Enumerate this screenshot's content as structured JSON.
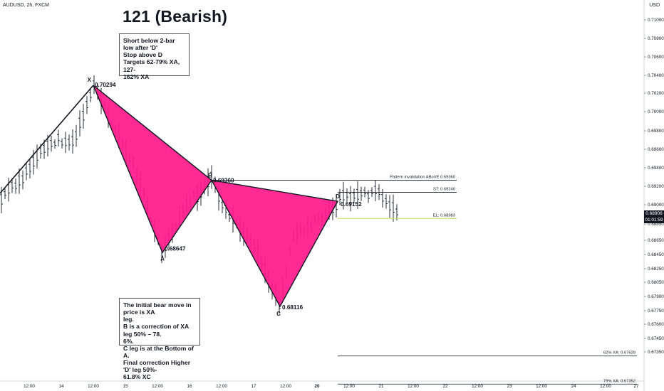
{
  "header": {
    "symbol": "AUDUSD, 2h, FXCM",
    "currency": "USD"
  },
  "title": "121 (Bearish)",
  "notes": {
    "top": [
      "Short below 2-bar low after 'D'",
      "Stop above D",
      "Targets 62-79% XA, 127-",
      "162%  XA"
    ],
    "bottom": [
      "The initial bear move in price is XA",
      "leg.",
      "B is a correction of XA leg 50% – 78.",
      "6%.",
      "C leg is at the Bottom of A.",
      "Final correction Higher 'D' leg 50%-",
      "61.8% XC"
    ]
  },
  "price_badge": {
    "price": "0.68906",
    "countdown": "01:01:59"
  },
  "colors": {
    "pattern_fill": "#ff1a8c",
    "pattern_stroke": "#131722",
    "entry_line": "#c6e36b",
    "level_line": "#131722",
    "candle": "#131722"
  },
  "chart_data": {
    "type": "harmonic-pattern",
    "yaxis": {
      "range": [
        0.6722,
        0.7114
      ],
      "ticks": [
        "0.71000",
        "0.70800",
        "0.70600",
        "0.70400",
        "0.70200",
        "0.70000",
        "0.69800",
        "0.69600",
        "0.69400",
        "0.69200",
        "0.69000",
        "0.68850",
        "0.68650",
        "0.68450",
        "0.68250",
        "0.68050",
        "0.67900",
        "0.67750",
        "0.67600",
        "0.67450",
        "0.67350"
      ]
    },
    "xaxis": {
      "ticks": [
        "12:00",
        "14",
        "12:00",
        "15",
        "12:00",
        "16",
        "12:00",
        "17",
        "12:00",
        "20",
        "12:00",
        "21",
        "12:00",
        "22",
        "12:00",
        "23",
        "12:00",
        "24",
        "12:00",
        "27"
      ]
    },
    "points": [
      {
        "label": "X",
        "price": "0.70294",
        "value": 0.70294
      },
      {
        "label": "A",
        "price": "0.68647",
        "value": 0.68647
      },
      {
        "label": "B",
        "price": "0.69360",
        "value": 0.6936
      },
      {
        "label": "C",
        "price": "0.68116",
        "value": 0.68116
      },
      {
        "label": "D",
        "price": "0.69152",
        "value": 0.69152
      }
    ],
    "levels": [
      {
        "label": "Pattern invalidation ABoVE 0.69360",
        "value": 0.6936
      },
      {
        "label": "ST: 0.69240",
        "value": 0.6924
      },
      {
        "label": "EL: 0.68983",
        "value": 0.68983
      },
      {
        "label": "62% XA: 0.67629",
        "value": 0.67629
      },
      {
        "label": "79% XA: 0.67352",
        "value": 0.67352
      }
    ]
  }
}
